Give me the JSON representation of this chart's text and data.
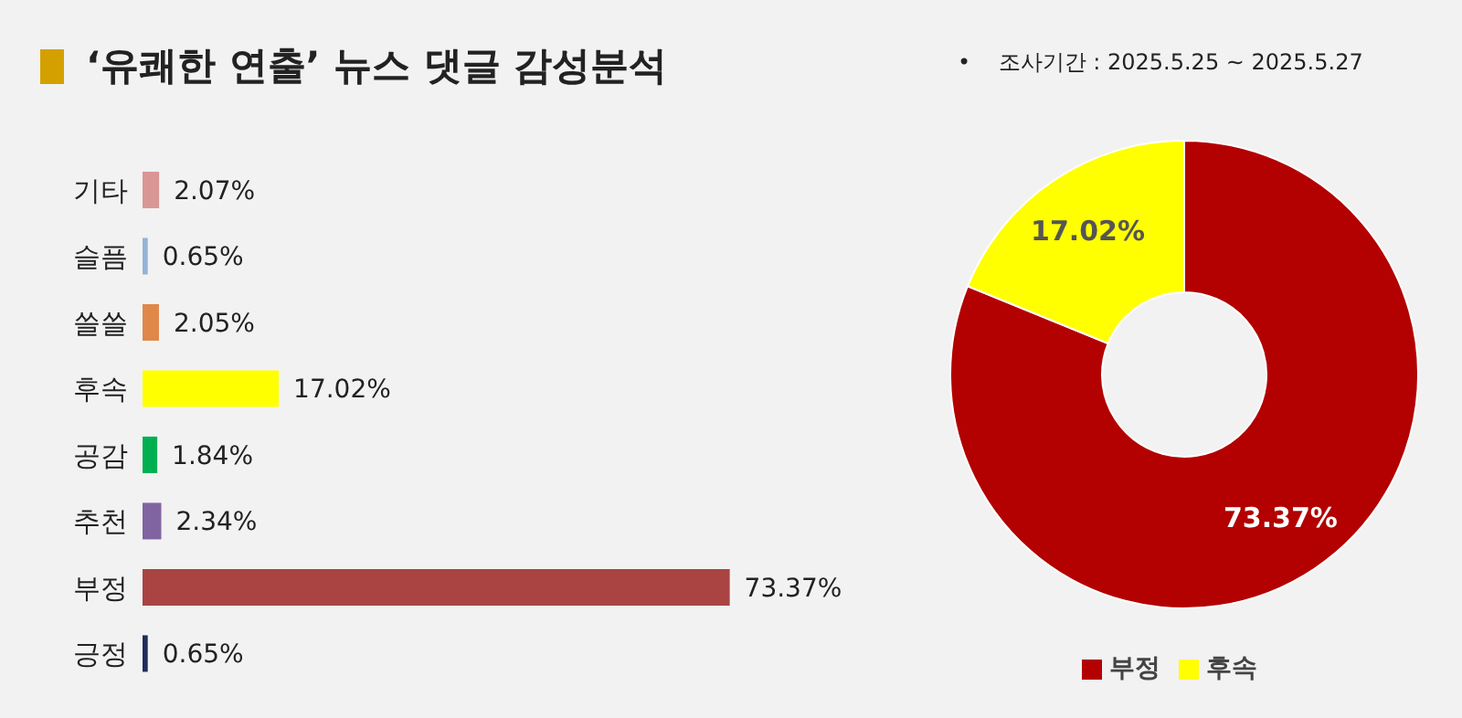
{
  "chart_data": [
    {
      "type": "bar",
      "title": "‘유쾌한 연출’ 뉴스 댓글 감성분석",
      "orientation": "horizontal",
      "categories": [
        "기타",
        "슬픔",
        "쓸쓸",
        "후속",
        "공감",
        "추천",
        "부정",
        "긍정"
      ],
      "values": [
        2.07,
        0.65,
        2.05,
        17.02,
        1.84,
        2.34,
        73.37,
        0.65
      ],
      "colors": [
        "#d99694",
        "#95b3d7",
        "#e0874a",
        "#ffff00",
        "#00b050",
        "#8064a2",
        "#a94442",
        "#1f2d5a"
      ],
      "value_labels": [
        "2.07%",
        "0.65%",
        "2.05%",
        "17.02%",
        "1.84%",
        "2.34%",
        "73.37%",
        "0.65%"
      ]
    },
    {
      "type": "donut",
      "annotations": [
        "•    조사기간 : 2025.5.25 ~ 2025.5.27"
      ],
      "categories": [
        "부정",
        "후속"
      ],
      "values": [
        73.37,
        17.02
      ],
      "colors": [
        "#b30000",
        "#ffff00"
      ],
      "value_labels": [
        "73.37%",
        "17.02%"
      ],
      "legend": "bottom"
    }
  ]
}
